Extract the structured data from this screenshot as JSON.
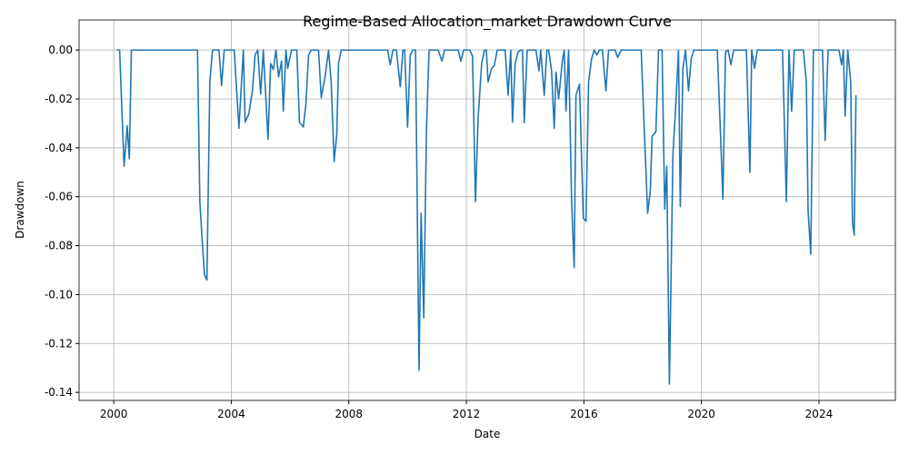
{
  "chart_data": {
    "type": "line",
    "title": "Regime-Based Allocation_market Drawdown Curve",
    "x_label": "Date",
    "y_label": "Drawdown",
    "color": "#1f77b4",
    "grid": true,
    "xlim": [
      1998.82,
      2026.6
    ],
    "ylim": [
      -0.1433,
      0.0123
    ],
    "xticks": [
      2000,
      2004,
      2008,
      2012,
      2016,
      2020,
      2024
    ],
    "yticks": [
      {
        "value": -0.14,
        "label": "-0.14"
      },
      {
        "value": -0.12,
        "label": "-0.12"
      },
      {
        "value": -0.1,
        "label": "-0.10"
      },
      {
        "value": -0.08,
        "label": "-0.08"
      },
      {
        "value": -0.06,
        "label": "-0.06"
      },
      {
        "value": -0.04,
        "label": "-0.04"
      },
      {
        "value": -0.02,
        "label": "-0.02"
      },
      {
        "value": 0,
        "label": "0.00"
      }
    ],
    "x": [
      2000.1,
      2000.2,
      2000.35,
      2000.46,
      2000.53,
      2000.6,
      2002.85,
      2002.93,
      2003.02,
      2003.09,
      2003.17,
      2003.27,
      2003.36,
      2003.58,
      2003.67,
      2003.76,
      2004.1,
      2004.26,
      2004.41,
      2004.47,
      2004.6,
      2004.72,
      2004.81,
      2004.9,
      2005.0,
      2005.09,
      2005.25,
      2005.34,
      2005.43,
      2005.52,
      2005.61,
      2005.71,
      2005.77,
      2005.86,
      2005.92,
      2006.05,
      2006.23,
      2006.32,
      2006.45,
      2006.54,
      2006.63,
      2006.72,
      2006.97,
      2007.06,
      2007.19,
      2007.31,
      2007.4,
      2007.5,
      2007.59,
      2007.65,
      2007.74,
      2009.32,
      2009.41,
      2009.5,
      2009.62,
      2009.75,
      2009.84,
      2009.9,
      2010.0,
      2010.09,
      2010.18,
      2010.27,
      2010.39,
      2010.46,
      2010.55,
      2010.64,
      2010.73,
      2011.04,
      2011.17,
      2011.26,
      2011.72,
      2011.81,
      2011.91,
      2012.12,
      2012.21,
      2012.31,
      2012.4,
      2012.52,
      2012.62,
      2012.68,
      2012.74,
      2012.86,
      2012.95,
      2013.05,
      2013.32,
      2013.42,
      2013.51,
      2013.57,
      2013.66,
      2013.76,
      2013.85,
      2013.91,
      2013.97,
      2014.07,
      2014.37,
      2014.47,
      2014.53,
      2014.65,
      2014.74,
      2014.8,
      2014.9,
      2014.99,
      2015.05,
      2015.14,
      2015.27,
      2015.33,
      2015.39,
      2015.48,
      2015.58,
      2015.67,
      2015.73,
      2015.85,
      2015.98,
      2016.07,
      2016.16,
      2016.26,
      2016.35,
      2016.44,
      2016.53,
      2016.63,
      2016.75,
      2016.84,
      2017.06,
      2017.15,
      2017.27,
      2017.95,
      2018.04,
      2018.17,
      2018.26,
      2018.32,
      2018.45,
      2018.54,
      2018.66,
      2018.75,
      2018.82,
      2018.91,
      2019.03,
      2019.12,
      2019.22,
      2019.28,
      2019.37,
      2019.46,
      2019.56,
      2019.65,
      2019.74,
      2020.54,
      2020.67,
      2020.73,
      2020.82,
      2020.91,
      2021.0,
      2021.1,
      2021.53,
      2021.65,
      2021.71,
      2021.81,
      2021.9,
      2022.76,
      2022.89,
      2022.98,
      2023.07,
      2023.16,
      2023.47,
      2023.57,
      2023.63,
      2023.72,
      2023.81,
      2024.12,
      2024.21,
      2024.31,
      2024.68,
      2024.77,
      2024.83,
      2024.89,
      2024.98,
      2025.08,
      2025.14,
      2025.2,
      2025.26
    ],
    "values": [
      0,
      0,
      -0.0475,
      -0.031,
      -0.0445,
      0,
      0,
      -0.062,
      -0.08,
      -0.092,
      -0.094,
      -0.013,
      0,
      0,
      -0.0145,
      0,
      0,
      -0.032,
      0,
      -0.0295,
      -0.026,
      -0.0165,
      -0.002,
      0,
      -0.018,
      0,
      -0.0365,
      -0.0055,
      -0.008,
      0,
      -0.011,
      -0.0045,
      -0.025,
      0,
      -0.0075,
      0,
      0,
      -0.0295,
      -0.0315,
      -0.022,
      -0.002,
      0,
      0,
      -0.0195,
      -0.011,
      0,
      -0.013,
      -0.0455,
      -0.0345,
      -0.0055,
      0,
      0,
      -0.006,
      0,
      0,
      -0.015,
      0,
      0,
      -0.0315,
      -0.002,
      0,
      0,
      -0.131,
      -0.0668,
      -0.1095,
      -0.0335,
      0,
      0,
      -0.0045,
      0,
      0,
      -0.0045,
      0,
      0,
      -0.0025,
      -0.062,
      -0.028,
      -0.0055,
      0,
      0,
      -0.013,
      -0.0075,
      -0.0063,
      0,
      0,
      -0.0185,
      0,
      -0.0295,
      -0.0055,
      -0.0008,
      0,
      0,
      -0.0297,
      0,
      0,
      -0.0085,
      0,
      -0.0185,
      0,
      0,
      -0.0085,
      -0.032,
      -0.009,
      -0.02,
      -0.004,
      0,
      -0.025,
      0,
      -0.061,
      -0.089,
      -0.0185,
      -0.014,
      -0.0687,
      -0.07,
      -0.013,
      -0.0037,
      0,
      -0.002,
      0,
      0,
      -0.0167,
      0,
      0,
      -0.003,
      0,
      0,
      -0.028,
      -0.0668,
      -0.0575,
      -0.0353,
      -0.0334,
      0,
      0,
      -0.065,
      -0.0475,
      -0.1366,
      -0.0427,
      -0.024,
      0,
      -0.064,
      -0.0075,
      0,
      -0.0167,
      -0.0037,
      0,
      0,
      -0.041,
      -0.061,
      -0.0008,
      0,
      -0.006,
      0,
      0,
      -0.05,
      0,
      -0.0075,
      0,
      0,
      -0.062,
      0,
      -0.025,
      0,
      0,
      -0.013,
      -0.0657,
      -0.0835,
      0,
      0,
      -0.037,
      0,
      0,
      -0.006,
      0,
      -0.027,
      0,
      -0.013,
      -0.0705,
      -0.0757,
      -0.0185
    ]
  }
}
